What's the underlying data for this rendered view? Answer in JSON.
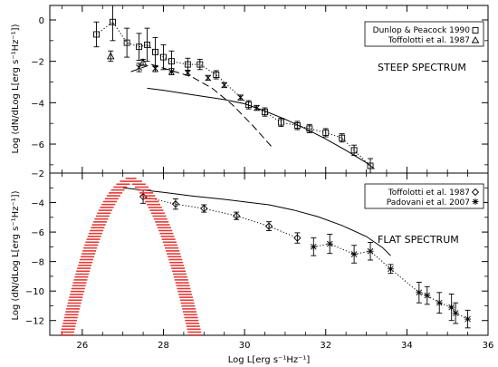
{
  "chart_data": [
    {
      "type": "scatter",
      "panel": "top",
      "label": "STEEP SPECTRUM",
      "ylabel": "Log (dN/dLog L[erg s⁻¹Hz⁻¹])",
      "xlim": [
        25.2,
        36
      ],
      "ylim": [
        -7.4,
        0.7
      ],
      "yticks": [
        0,
        -2,
        -4,
        -6
      ],
      "series": [
        {
          "name": "Dunlop & Peacock 1990",
          "marker": "square",
          "line": "dotted",
          "x": [
            26.35,
            26.75,
            27.1,
            27.4,
            27.6,
            27.8,
            28.0,
            28.2,
            28.6,
            28.9,
            29.3,
            30.1,
            30.5,
            30.9,
            31.3,
            31.6,
            32.0,
            32.4,
            32.7,
            33.1
          ],
          "y": [
            -0.7,
            -0.1,
            -1.1,
            -1.3,
            -1.2,
            -1.55,
            -1.8,
            -2.0,
            -2.15,
            -2.15,
            -2.65,
            -4.1,
            -4.45,
            -4.95,
            -5.1,
            -5.25,
            -5.45,
            -5.7,
            -6.3,
            -7.05
          ],
          "yerr": [
            0.6,
            0.9,
            0.7,
            0.65,
            0.8,
            0.7,
            0.6,
            0.5,
            0.3,
            0.25,
            0.2,
            0.2,
            0.2,
            0.2,
            0.2,
            0.2,
            0.2,
            0.2,
            0.25,
            0.35
          ]
        },
        {
          "name": "Toffolotti et al. 1987",
          "marker": "triangle",
          "line": "none",
          "x": [
            26.7,
            27.5
          ],
          "y": [
            -1.75,
            -2.05
          ],
          "yerr": [
            0.25,
            0.15
          ]
        },
        {
          "marker": "cross",
          "line": "none",
          "x": [
            27.4,
            27.8,
            28.2,
            28.6,
            29.1,
            29.5,
            29.9,
            30.3
          ],
          "y": [
            -2.3,
            -2.35,
            -2.5,
            -2.55,
            -2.8,
            -3.15,
            -3.75,
            -4.25
          ],
          "yerr": [
            0.2,
            0.15,
            0.15,
            0.12,
            0.12,
            0.12,
            0.12,
            0.12
          ]
        },
        {
          "line": "solid",
          "x": [
            27.6,
            28.0,
            28.5,
            29.0,
            29.5,
            30.0,
            30.5,
            31.0,
            31.5,
            32.0,
            32.5,
            33.0,
            33.2
          ],
          "y": [
            -3.3,
            -3.4,
            -3.55,
            -3.7,
            -3.85,
            -4.05,
            -4.4,
            -4.8,
            -5.25,
            -5.75,
            -6.3,
            -6.9,
            -7.2
          ]
        },
        {
          "line": "dashed",
          "x": [
            27.2,
            27.7,
            28.2,
            28.7,
            29.2,
            29.7,
            30.2,
            30.7
          ],
          "y": [
            -2.5,
            -2.15,
            -2.45,
            -2.75,
            -3.3,
            -4.1,
            -5.1,
            -6.2
          ]
        }
      ]
    },
    {
      "type": "scatter",
      "panel": "bottom",
      "label": "FLAT SPECTRUM",
      "xlabel": "Log L[erg s⁻¹Hz⁻¹]",
      "ylabel": "Log (dN/dLog L[erg s⁻¹Hz⁻¹])",
      "xlim": [
        25.2,
        36
      ],
      "ylim": [
        -13,
        -2
      ],
      "xticks": [
        26,
        28,
        30,
        32,
        34,
        36
      ],
      "yticks": [
        -2,
        -4,
        -6,
        -8,
        -10,
        -12
      ],
      "series": [
        {
          "name": "Toffolotti et al. 1987",
          "marker": "diamond",
          "line": "dotted",
          "x": [
            27.5,
            28.3,
            29.0,
            29.8,
            30.6,
            31.3
          ],
          "y": [
            -3.6,
            -4.1,
            -4.4,
            -4.9,
            -5.6,
            -6.4
          ],
          "yerr": [
            0.45,
            0.35,
            0.25,
            0.25,
            0.3,
            0.35
          ]
        },
        {
          "name": "Padovani et al. 2007",
          "marker": "asterisk",
          "line": "dotted",
          "x": [
            31.7,
            32.1,
            32.7,
            33.1,
            33.6,
            34.3,
            34.5,
            34.8,
            35.1,
            35.2,
            35.5
          ],
          "y": [
            -7.0,
            -6.8,
            -7.5,
            -7.3,
            -8.5,
            -10.1,
            -10.3,
            -10.8,
            -11.1,
            -11.5,
            -11.9
          ],
          "yerr": [
            0.6,
            0.65,
            0.6,
            0.6,
            0.3,
            0.7,
            0.6,
            0.7,
            0.9,
            0.7,
            0.6
          ]
        },
        {
          "line": "solid",
          "x": [
            27.0,
            28.0,
            28.7,
            29.4,
            30.0,
            30.6,
            31.2,
            31.8,
            32.4,
            33.0,
            33.4,
            33.6
          ],
          "y": [
            -3.0,
            -3.3,
            -3.55,
            -3.75,
            -3.95,
            -4.15,
            -4.5,
            -4.95,
            -5.55,
            -6.3,
            -7.05,
            -7.6
          ]
        },
        {
          "line": "hatched-band",
          "color": "#e53935",
          "peak_x": 27.2,
          "peak_y": -2.3,
          "half_width": 1.75
        }
      ]
    }
  ]
}
